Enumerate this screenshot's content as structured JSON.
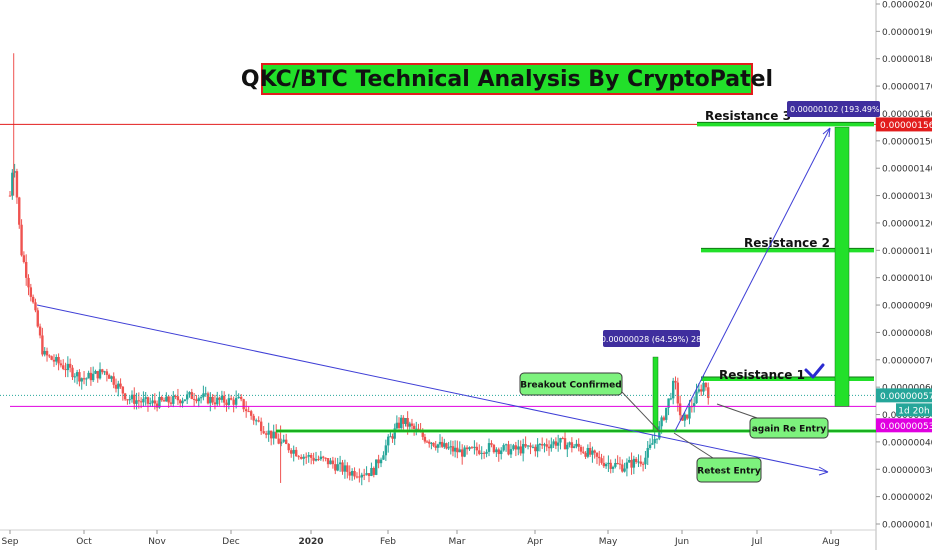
{
  "chart_data": {
    "type": "candlestick",
    "title": "QKC/BTC Technical Analysis By CryptoPatel",
    "y_axis": {
      "ticks": [
        "0.00000200",
        "0.00000190",
        "0.00000180",
        "0.00000170",
        "0.00000160",
        "0.00000150",
        "0.00000140",
        "0.00000130",
        "0.00000120",
        "0.00000110",
        "0.00000100",
        "0.00000090",
        "0.00000080",
        "0.00000070",
        "0.00000060",
        "0.00000050",
        "0.00000040",
        "0.00000030",
        "0.00000020",
        "0.00000010"
      ],
      "range": [
        1e-07,
        2e-06
      ]
    },
    "x_axis": {
      "ticks": [
        "Sep",
        "Oct",
        "Nov",
        "Dec",
        "2020",
        "Feb",
        "Mar",
        "Apr",
        "May",
        "Jun",
        "Jul",
        "Aug"
      ]
    },
    "price_tags": {
      "resistance_price": "0.00000156",
      "current_price": "0.00000057",
      "countdown": "1d 20h",
      "support_price": "0.00000053"
    },
    "measures": {
      "long_target": "0.00000102 (193.49%) 1",
      "breakout_move": "0.00000028 (64.59%) 28"
    },
    "levels": {
      "resistance_3": {
        "label": "Resistance 3",
        "value": 1.56e-06
      },
      "resistance_2": {
        "label": "Resistance 2",
        "value": 1.1e-06
      },
      "resistance_1": {
        "label": "Resistance 1",
        "value": 6.3e-07
      },
      "support": {
        "value": 4.4e-07
      },
      "magenta_line": {
        "value": 5.3e-07
      },
      "current_price_line": {
        "value": 5.7e-07
      }
    },
    "annotations": {
      "breakout": "Breakout Confirmed",
      "retest": "Retest Entry",
      "reentry": "again Re Entry"
    },
    "colors": {
      "up": "#26a69a",
      "down": "#ef5350",
      "level_green": "#22e02a",
      "trendline": "#3f3fd6",
      "resistance_red": "#e21d1d",
      "magenta": "#e000e0",
      "label_fill": "#7df27d",
      "measure_fill": "#3f2e9e"
    }
  }
}
